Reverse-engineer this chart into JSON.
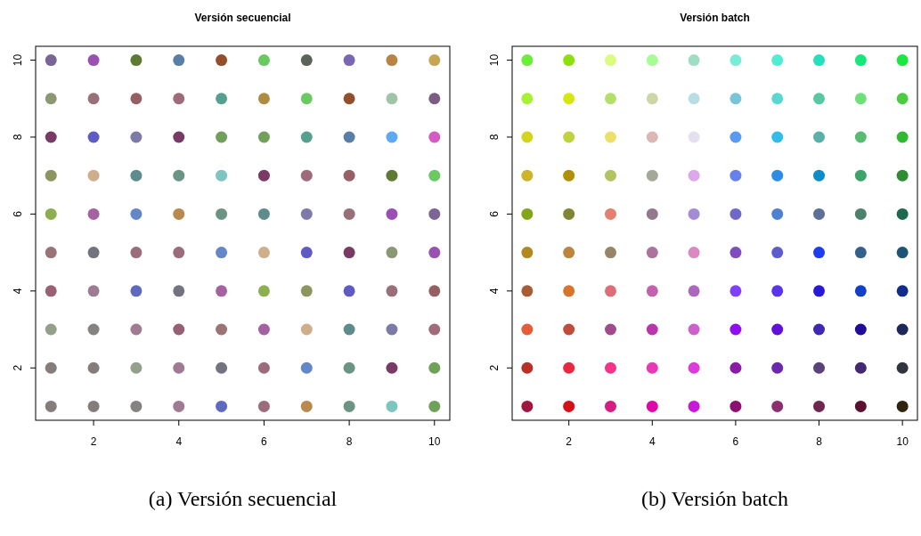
{
  "chart_data": [
    {
      "type": "scatter",
      "title": "Versión secuencial",
      "marker": "circle",
      "grid": false,
      "xlim": [
        0.64,
        10.36
      ],
      "ylim": [
        0.64,
        10.36
      ],
      "xticks": [
        2,
        4,
        6,
        8,
        10
      ],
      "yticks": [
        2,
        4,
        6,
        8,
        10
      ],
      "x": [
        1,
        2,
        3,
        4,
        5,
        6,
        7,
        8,
        9,
        10,
        1,
        2,
        3,
        4,
        5,
        6,
        7,
        8,
        9,
        10,
        1,
        2,
        3,
        4,
        5,
        6,
        7,
        8,
        9,
        10,
        1,
        2,
        3,
        4,
        5,
        6,
        7,
        8,
        9,
        10,
        1,
        2,
        3,
        4,
        5,
        6,
        7,
        8,
        9,
        10,
        1,
        2,
        3,
        4,
        5,
        6,
        7,
        8,
        9,
        10,
        1,
        2,
        3,
        4,
        5,
        6,
        7,
        8,
        9,
        10,
        1,
        2,
        3,
        4,
        5,
        6,
        7,
        8,
        9,
        10,
        1,
        2,
        3,
        4,
        5,
        6,
        7,
        8,
        9,
        10,
        1,
        2,
        3,
        4,
        5,
        6,
        7,
        8,
        9,
        10
      ],
      "values": [
        10,
        10,
        10,
        10,
        10,
        10,
        10,
        10,
        10,
        10,
        9,
        9,
        9,
        9,
        9,
        9,
        9,
        9,
        9,
        9,
        8,
        8,
        8,
        8,
        8,
        8,
        8,
        8,
        8,
        8,
        7,
        7,
        7,
        7,
        7,
        7,
        7,
        7,
        7,
        7,
        6,
        6,
        6,
        6,
        6,
        6,
        6,
        6,
        6,
        6,
        5,
        5,
        5,
        5,
        5,
        5,
        5,
        5,
        5,
        5,
        4,
        4,
        4,
        4,
        4,
        4,
        4,
        4,
        4,
        4,
        3,
        3,
        3,
        3,
        3,
        3,
        3,
        3,
        3,
        3,
        2,
        2,
        2,
        2,
        2,
        2,
        2,
        2,
        2,
        2,
        1,
        1,
        1,
        1,
        1,
        1,
        1,
        1,
        1,
        1
      ],
      "colors": [
        "#7a6594",
        "#9a4fb5",
        "#5f7a32",
        "#5a7fa6",
        "#924f2a",
        "#6ac960",
        "#5c6459",
        "#7b66b3",
        "#b98443",
        "#c5a652",
        "#8c9873",
        "#97707a",
        "#956062",
        "#9e6b7b",
        "#56a090",
        "#ad8c42",
        "#6ac960",
        "#924f2a",
        "#a0c4a6",
        "#7b5d84",
        "#7a3a66",
        "#5e5cc4",
        "#7e7aa8",
        "#7a3a66",
        "#70a05a",
        "#70a05a",
        "#56a090",
        "#5a7fa6",
        "#5eaaf0",
        "#d35cc4",
        "#8c9460",
        "#cfae8c",
        "#5e8c8c",
        "#6c9484",
        "#7ec4c0",
        "#7a3a66",
        "#9e6b7b",
        "#966066",
        "#5f7a32",
        "#6ac960",
        "#8cb050",
        "#a462a0",
        "#6487c8",
        "#b98a50",
        "#6c9484",
        "#5e8c8c",
        "#7e7aa8",
        "#97707a",
        "#9a4fb5",
        "#7a6594",
        "#9a7378",
        "#72737e",
        "#9a6c7c",
        "#9a6c7c",
        "#6487c8",
        "#cfae8c",
        "#5e5cc4",
        "#7a3a66",
        "#8c9873",
        "#9a4fb5",
        "#9a6074",
        "#9e7b92",
        "#5e6ac0",
        "#72737e",
        "#a462a0",
        "#8cb050",
        "#8c9460",
        "#5e5cc4",
        "#97707a",
        "#956062",
        "#94a08a",
        "#858282",
        "#a07b92",
        "#966074",
        "#9c7474",
        "#a462a0",
        "#cfae8c",
        "#5e8c8c",
        "#7e7aa8",
        "#a06c7c",
        "#857c7c",
        "#857c7c",
        "#94a08a",
        "#9e7b92",
        "#72737e",
        "#9a6c7c",
        "#6487c8",
        "#6c9484",
        "#7a3a66",
        "#70a05a",
        "#857c7c",
        "#857c7c",
        "#858282",
        "#9e7b92",
        "#5e6ac0",
        "#9a6c7c",
        "#b98a50",
        "#6c9484",
        "#7ec4c0",
        "#70a05a"
      ],
      "annotations": [
        "(a) Versión secuencial"
      ]
    },
    {
      "type": "scatter",
      "title": "Versión batch",
      "marker": "circle",
      "grid": false,
      "xlim": [
        0.64,
        10.36
      ],
      "ylim": [
        0.64,
        10.36
      ],
      "xticks": [
        2,
        4,
        6,
        8,
        10
      ],
      "yticks": [
        2,
        4,
        6,
        8,
        10
      ],
      "x": [
        1,
        2,
        3,
        4,
        5,
        6,
        7,
        8,
        9,
        10,
        1,
        2,
        3,
        4,
        5,
        6,
        7,
        8,
        9,
        10,
        1,
        2,
        3,
        4,
        5,
        6,
        7,
        8,
        9,
        10,
        1,
        2,
        3,
        4,
        5,
        6,
        7,
        8,
        9,
        10,
        1,
        2,
        3,
        4,
        5,
        6,
        7,
        8,
        9,
        10,
        1,
        2,
        3,
        4,
        5,
        6,
        7,
        8,
        9,
        10,
        1,
        2,
        3,
        4,
        5,
        6,
        7,
        8,
        9,
        10,
        1,
        2,
        3,
        4,
        5,
        6,
        7,
        8,
        9,
        10,
        1,
        2,
        3,
        4,
        5,
        6,
        7,
        8,
        9,
        10,
        1,
        2,
        3,
        4,
        5,
        6,
        7,
        8,
        9,
        10
      ],
      "values": [
        10,
        10,
        10,
        10,
        10,
        10,
        10,
        10,
        10,
        10,
        9,
        9,
        9,
        9,
        9,
        9,
        9,
        9,
        9,
        9,
        8,
        8,
        8,
        8,
        8,
        8,
        8,
        8,
        8,
        8,
        7,
        7,
        7,
        7,
        7,
        7,
        7,
        7,
        7,
        7,
        6,
        6,
        6,
        6,
        6,
        6,
        6,
        6,
        6,
        6,
        5,
        5,
        5,
        5,
        5,
        5,
        5,
        5,
        5,
        5,
        4,
        4,
        4,
        4,
        4,
        4,
        4,
        4,
        4,
        4,
        3,
        3,
        3,
        3,
        3,
        3,
        3,
        3,
        3,
        3,
        2,
        2,
        2,
        2,
        2,
        2,
        2,
        2,
        2,
        2,
        1,
        1,
        1,
        1,
        1,
        1,
        1,
        1,
        1,
        1
      ],
      "colors": [
        "#6ced3a",
        "#8ce00c",
        "#dcfc80",
        "#a8fc96",
        "#a0dec4",
        "#78ecd4",
        "#52ecd4",
        "#24e0bc",
        "#14e87a",
        "#18e840",
        "#a8f032",
        "#d4e810",
        "#b4e06a",
        "#ccd6a6",
        "#b8dee4",
        "#7ac4d8",
        "#58d8d0",
        "#58c8a0",
        "#6ee07a",
        "#4ccc40",
        "#d4d41c",
        "#c0d23c",
        "#ece06a",
        "#dcb8b4",
        "#e4e0f0",
        "#5a9af0",
        "#34bce8",
        "#5cb0ac",
        "#58bc70",
        "#30b830",
        "#ceb42c",
        "#b09008",
        "#b0c460",
        "#a4a898",
        "#dca8e8",
        "#6680ec",
        "#2e8ce4",
        "#0c8cc8",
        "#3ca46a",
        "#2e8c34",
        "#84a41c",
        "#808634",
        "#e48070",
        "#94788e",
        "#a48cd4",
        "#7068c8",
        "#5080d0",
        "#5c7098",
        "#4e806c",
        "#1e6850",
        "#b48820",
        "#bc843c",
        "#988466",
        "#ac749c",
        "#dc88c4",
        "#804cc0",
        "#5c5ccc",
        "#1e3cf0",
        "#34608c",
        "#1e5478",
        "#a85c34",
        "#d8742c",
        "#e06c78",
        "#c460ac",
        "#ac68bc",
        "#8040f8",
        "#5834ec",
        "#2818d8",
        "#1440c8",
        "#102c8c",
        "#e45c38",
        "#c04c3c",
        "#a04c8c",
        "#b838ac",
        "#cc60cc",
        "#9010ec",
        "#6010d8",
        "#4028b4",
        "#200c98",
        "#1c285c",
        "#b83028",
        "#e82840",
        "#f43488",
        "#e838b4",
        "#dc3cdc",
        "#881ca4",
        "#6a28ac",
        "#584478",
        "#422870",
        "#30343c",
        "#a0163c",
        "#d41018",
        "#d41e80",
        "#dc08a8",
        "#c818d8",
        "#8c1070",
        "#8a3070",
        "#6e2850",
        "#5c1030",
        "#2e2410"
      ],
      "annotations": [
        "(b) Versión batch"
      ]
    }
  ]
}
